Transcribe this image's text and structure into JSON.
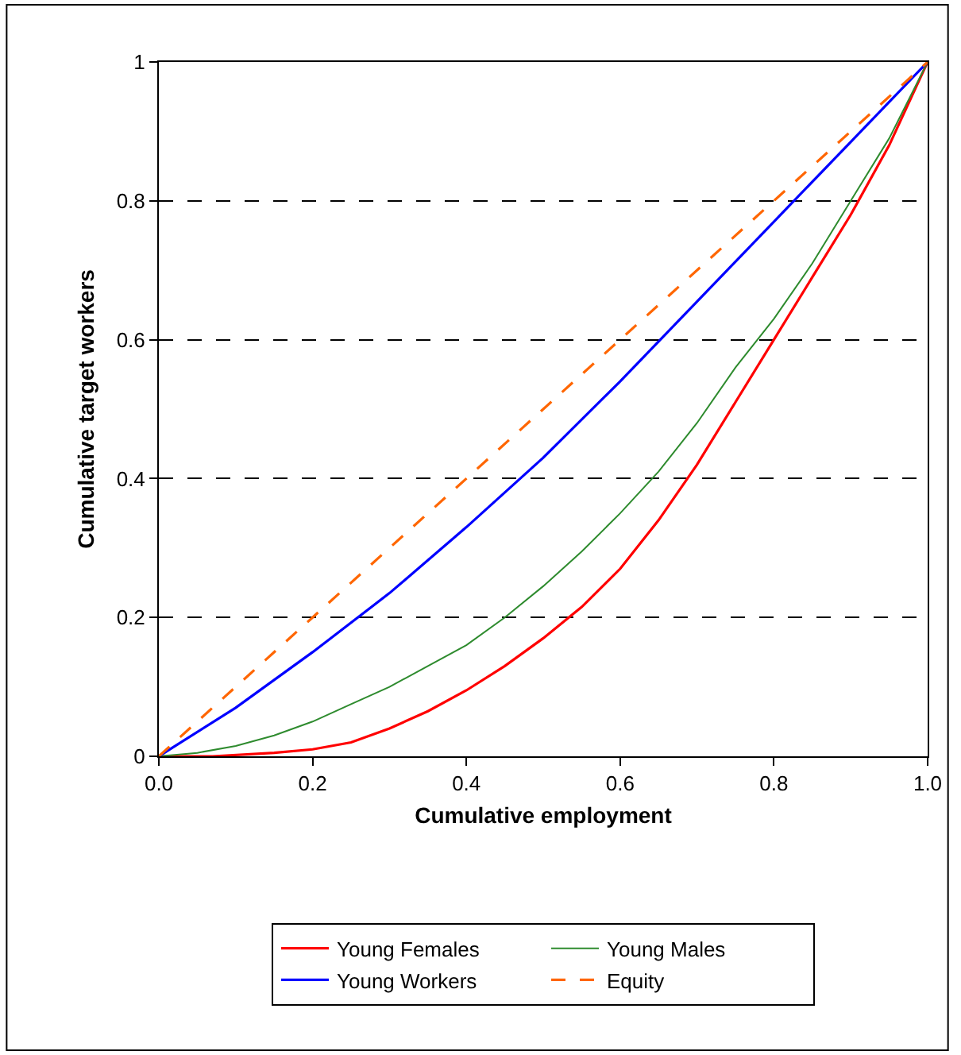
{
  "chart_data": {
    "type": "line",
    "xlabel": "Cumulative employment",
    "ylabel": "Cumulative target workers",
    "xlim": [
      0,
      1
    ],
    "ylim": [
      0,
      1
    ],
    "xticks": [
      {
        "value": 0,
        "label": "0.0"
      },
      {
        "value": 0.2,
        "label": "0.2"
      },
      {
        "value": 0.4,
        "label": "0.4"
      },
      {
        "value": 0.6,
        "label": "0.6"
      },
      {
        "value": 0.8,
        "label": "0.8"
      },
      {
        "value": 1,
        "label": "1.0"
      }
    ],
    "yticks": [
      0,
      0.2,
      0.4,
      0.6,
      0.8,
      1
    ],
    "grid": "y",
    "legend": "bottom",
    "series": [
      {
        "name": "Young Females",
        "color": "#ff0000",
        "line_style": "solid",
        "x": [
          0,
          0.07,
          0.15,
          0.2,
          0.25,
          0.3,
          0.35,
          0.4,
          0.45,
          0.5,
          0.55,
          0.6,
          0.65,
          0.7,
          0.75,
          0.8,
          0.85,
          0.9,
          0.95,
          1
        ],
        "values": [
          0,
          0,
          0.005,
          0.01,
          0.02,
          0.04,
          0.065,
          0.095,
          0.13,
          0.17,
          0.215,
          0.27,
          0.34,
          0.42,
          0.51,
          0.6,
          0.69,
          0.78,
          0.88,
          1
        ]
      },
      {
        "name": "Young Males",
        "color": "#2e8b2e",
        "line_style": "solid",
        "x": [
          0,
          0.05,
          0.1,
          0.15,
          0.2,
          0.25,
          0.3,
          0.35,
          0.4,
          0.45,
          0.5,
          0.55,
          0.6,
          0.65,
          0.7,
          0.75,
          0.8,
          0.85,
          0.9,
          0.95,
          1
        ],
        "values": [
          0,
          0.005,
          0.015,
          0.03,
          0.05,
          0.075,
          0.1,
          0.13,
          0.16,
          0.2,
          0.245,
          0.295,
          0.35,
          0.41,
          0.48,
          0.56,
          0.63,
          0.71,
          0.8,
          0.89,
          1
        ]
      },
      {
        "name": "Young Workers",
        "color": "#0000ff",
        "line_style": "solid",
        "x": [
          0,
          0.1,
          0.2,
          0.3,
          0.4,
          0.5,
          0.6,
          0.7,
          0.8,
          0.9,
          1
        ],
        "values": [
          0,
          0.07,
          0.15,
          0.235,
          0.33,
          0.43,
          0.54,
          0.655,
          0.77,
          0.885,
          1
        ]
      },
      {
        "name": "Equity",
        "color": "#ff6600",
        "line_style": "dashed",
        "x": [
          0,
          0.2,
          0.4,
          0.6,
          0.8,
          1
        ],
        "values": [
          0,
          0.2,
          0.4,
          0.6,
          0.8,
          1
        ]
      }
    ]
  }
}
